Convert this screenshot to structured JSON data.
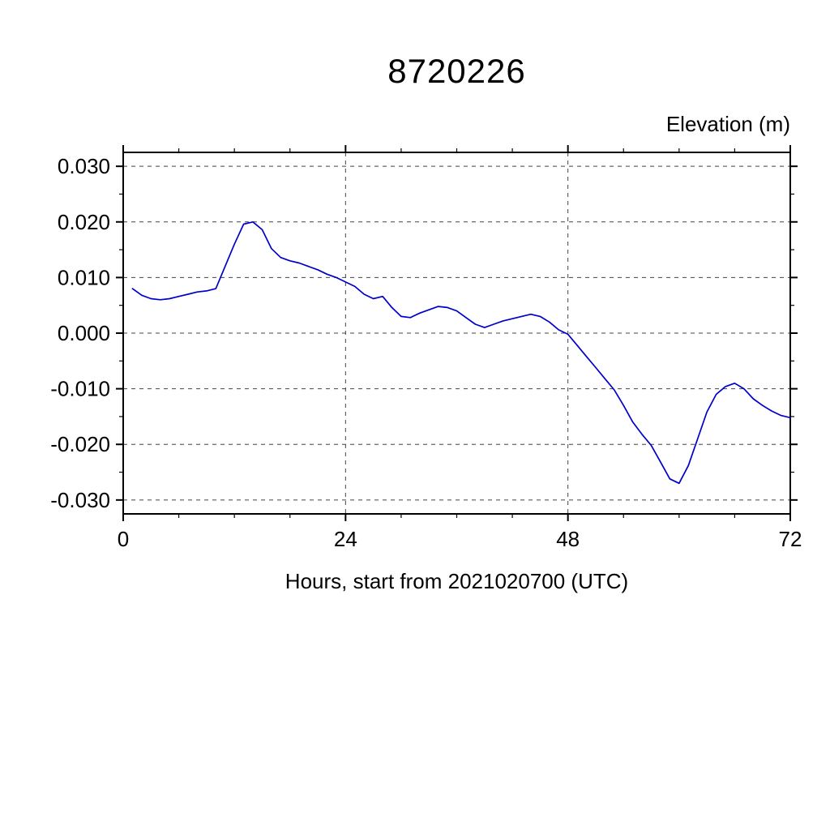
{
  "chart_data": {
    "type": "line",
    "title": "8720226",
    "xlabel": "Hours, start from 2021020700 (UTC)",
    "ylabel": "Elevation (m)",
    "xlim": [
      0,
      72
    ],
    "ylim": [
      -0.0325,
      0.0325
    ],
    "xticks_major": [
      0,
      24,
      48,
      72
    ],
    "xtick_labels": [
      "0",
      "24",
      "48",
      "72"
    ],
    "xticks_minor": [
      6,
      12,
      18,
      30,
      36,
      42,
      54,
      60,
      66
    ],
    "yticks_major": [
      0.03,
      0.02,
      0.01,
      0.0,
      -0.01,
      -0.02,
      -0.03
    ],
    "ytick_labels": [
      "0.030",
      "0.020",
      "0.010",
      "0.000",
      "-0.010",
      "-0.020",
      "-0.030"
    ],
    "yticks_minor": [
      0.025,
      0.015,
      0.005,
      -0.005,
      -0.015,
      -0.025
    ],
    "grid": true,
    "grid_x_lines": [
      24,
      48
    ],
    "legend": "none",
    "line_color": "#0000cc",
    "axis_color": "#000000",
    "grid_color": "#444444",
    "series_name": "elevation",
    "x": [
      1,
      2,
      3,
      4,
      5,
      6,
      7,
      8,
      9,
      10,
      11,
      12,
      13,
      14,
      15,
      16,
      17,
      18,
      19,
      20,
      21,
      22,
      23,
      24,
      25,
      26,
      27,
      28,
      29,
      30,
      31,
      32,
      33,
      34,
      35,
      36,
      37,
      38,
      39,
      40,
      41,
      42,
      43,
      44,
      45,
      46,
      47,
      48,
      49,
      50,
      51,
      52,
      53,
      54,
      55,
      56,
      57,
      58,
      59,
      60,
      61,
      62,
      63,
      64,
      65,
      66,
      67,
      68,
      69,
      70,
      71,
      72
    ],
    "y": [
      0.008,
      0.0068,
      0.0062,
      0.006,
      0.0062,
      0.0066,
      0.007,
      0.0074,
      0.0076,
      0.008,
      0.012,
      0.016,
      0.0196,
      0.02,
      0.0186,
      0.0152,
      0.0136,
      0.013,
      0.0126,
      0.012,
      0.0114,
      0.0106,
      0.01,
      0.0092,
      0.0084,
      0.007,
      0.0062,
      0.0066,
      0.0046,
      0.003,
      0.0028,
      0.0036,
      0.0042,
      0.0048,
      0.0046,
      0.004,
      0.0028,
      0.0016,
      0.001,
      0.0016,
      0.0022,
      0.0026,
      0.003,
      0.0034,
      0.003,
      0.002,
      0.0006,
      -0.0002,
      -0.0022,
      -0.0042,
      -0.0062,
      -0.0082,
      -0.0102,
      -0.013,
      -0.016,
      -0.0182,
      -0.0202,
      -0.0232,
      -0.0262,
      -0.027,
      -0.0238,
      -0.019,
      -0.0142,
      -0.011,
      -0.0096,
      -0.009,
      -0.01,
      -0.0118,
      -0.013,
      -0.014,
      -0.0148,
      -0.0152
    ]
  }
}
